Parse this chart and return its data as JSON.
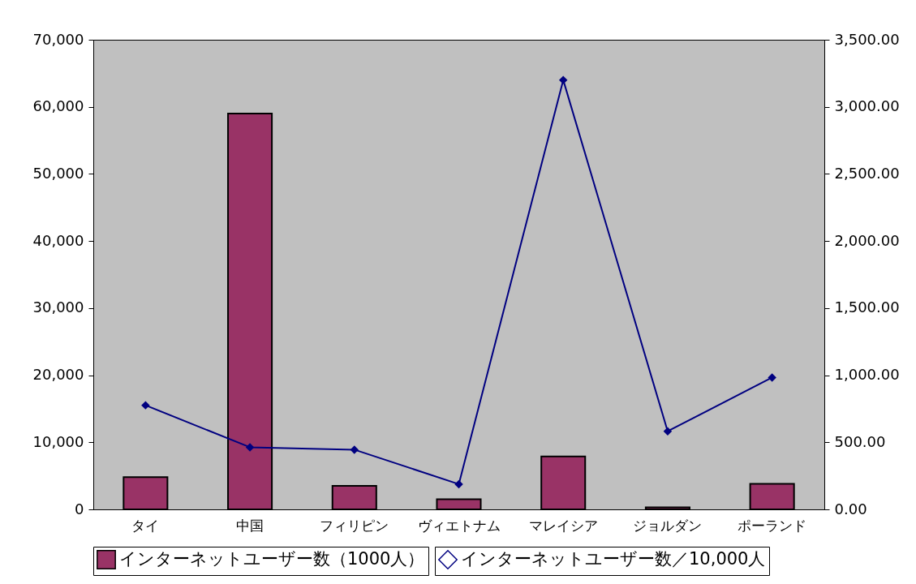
{
  "chart_data": {
    "type": "bar",
    "categories": [
      "タイ",
      "中国",
      "フィリピン",
      "ヴィエトナム",
      "マレイシア",
      "ジョルダン",
      "ポーランド"
    ],
    "series": [
      {
        "name": "インターネットユーザー数（1000人）",
        "color": "#993366",
        "values": [
          4800,
          59000,
          3500,
          1500,
          7900,
          300,
          3800
        ]
      },
      {
        "name": "インターネットユーザー数／10,000人",
        "type": "line",
        "axis": "y2",
        "color": "#000080",
        "marker": "diamond",
        "values": [
          776,
          463,
          445,
          188,
          3200,
          582,
          983
        ]
      }
    ],
    "ylim": [
      0,
      70000
    ],
    "yticks": [
      {
        "value": 0,
        "label": "0"
      },
      {
        "value": 10000,
        "label": "10,000"
      },
      {
        "value": 20000,
        "label": "20,000"
      },
      {
        "value": 30000,
        "label": "30,000"
      },
      {
        "value": 40000,
        "label": "40,000"
      },
      {
        "value": 50000,
        "label": "50,000"
      },
      {
        "value": 60000,
        "label": "60,000"
      },
      {
        "value": 70000,
        "label": "70,000"
      }
    ],
    "y2lim": [
      0,
      3500
    ],
    "y2ticks": [
      {
        "value": 0,
        "label": "0.00"
      },
      {
        "value": 500,
        "label": "500.00"
      },
      {
        "value": 1000,
        "label": "1,000.00"
      },
      {
        "value": 1500,
        "label": "1,500.00"
      },
      {
        "value": 2000,
        "label": "2,000.00"
      },
      {
        "value": 2500,
        "label": "2,500.00"
      },
      {
        "value": 3000,
        "label": "3,000.00"
      },
      {
        "value": 3500,
        "label": "3,500.00"
      }
    ],
    "legend": "bottom"
  }
}
